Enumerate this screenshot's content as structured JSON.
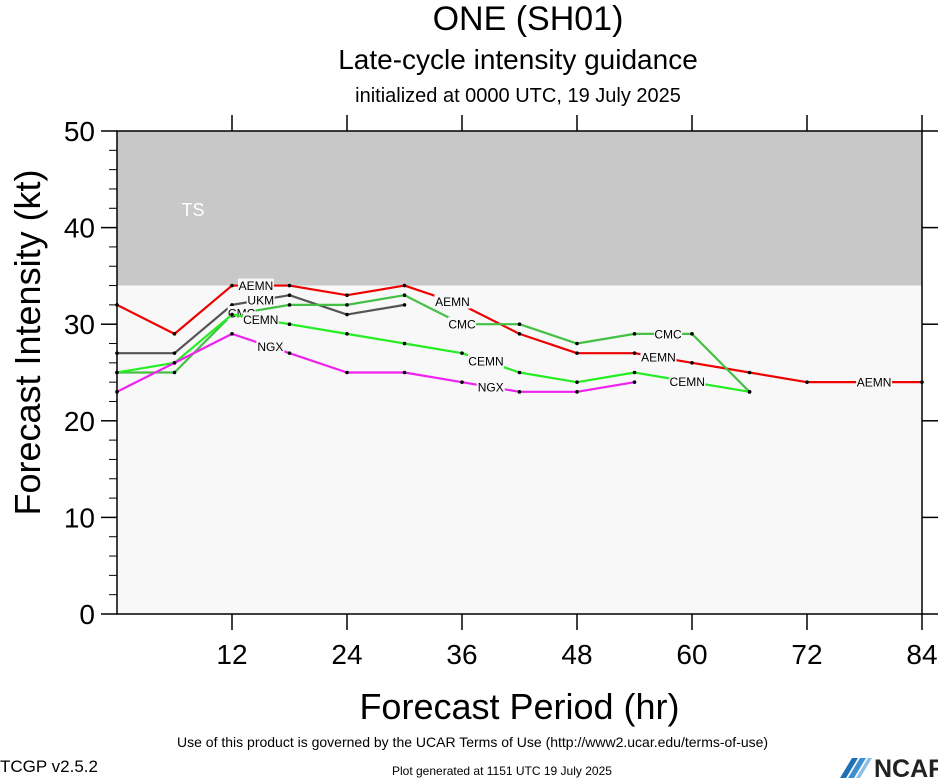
{
  "header": {
    "title": "ONE (SH01)",
    "subtitle": "Late-cycle intensity guidance",
    "initialized": "initialized at 0000 UTC, 19 July 2025"
  },
  "footer": {
    "terms": "Use of this product is governed by the UCAR Terms of Use (http://www2.ucar.edu/terms-of-use)",
    "generated": "Plot generated at 1151 UTC   19 July 2025",
    "version": "TCGP v2.5.2",
    "logo_text": "NCAR"
  },
  "colors": {
    "ts_band": "#c8c8c8",
    "plot_bg": "#f8f8f8",
    "AEMN": "#ee0000",
    "UKM": "#555555",
    "CMC": "#44c044",
    "CEMN": "#22ee22",
    "NGX": "#ee22ee"
  },
  "chart_data": {
    "type": "line",
    "title": "ONE (SH01)",
    "xlabel": "Forecast Period (hr)",
    "ylabel": "Forecast Intensity (kt)",
    "xlim": [
      0,
      84
    ],
    "ylim": [
      0,
      50
    ],
    "xticks": [
      12,
      24,
      36,
      48,
      60,
      72,
      84
    ],
    "yticks": [
      0,
      10,
      20,
      30,
      40,
      50
    ],
    "bands": [
      {
        "label": "TS",
        "from": 34,
        "to": 50
      }
    ],
    "grid": false,
    "series": [
      {
        "name": "AEMN",
        "x": [
          0,
          6,
          12,
          18,
          24,
          30,
          36,
          42,
          48,
          54,
          60,
          66,
          72,
          78,
          84
        ],
        "y": [
          32,
          29,
          34,
          34,
          33,
          34,
          32,
          29,
          27,
          27,
          26,
          25,
          24,
          24,
          24
        ],
        "label_at": [
          14.5,
          35,
          56.5,
          79
        ]
      },
      {
        "name": "UKM",
        "x": [
          0,
          6,
          12,
          18,
          24,
          30
        ],
        "y": [
          27,
          27,
          32,
          33,
          31,
          32
        ],
        "label_at": [
          15
        ]
      },
      {
        "name": "CMC",
        "x": [
          0,
          6,
          12,
          18,
          24,
          30,
          36,
          42,
          48,
          54,
          60,
          66
        ],
        "y": [
          25,
          25,
          31,
          32,
          32,
          33,
          30,
          30,
          28,
          29,
          29,
          23
        ],
        "label_at": [
          13,
          36,
          57.5
        ]
      },
      {
        "name": "CEMN",
        "x": [
          0,
          6,
          12,
          18,
          24,
          30,
          36,
          42,
          48,
          54,
          60,
          66
        ],
        "y": [
          25,
          26,
          31,
          30,
          29,
          28,
          27,
          25,
          24,
          25,
          24,
          23
        ],
        "label_at": [
          15,
          38.5,
          59.5
        ]
      },
      {
        "name": "NGX",
        "x": [
          0,
          6,
          12,
          18,
          24,
          30,
          36,
          42,
          48,
          54
        ],
        "y": [
          23,
          26,
          29,
          27,
          25,
          25,
          24,
          23,
          23,
          24
        ],
        "label_at": [
          16,
          39
        ]
      }
    ]
  }
}
